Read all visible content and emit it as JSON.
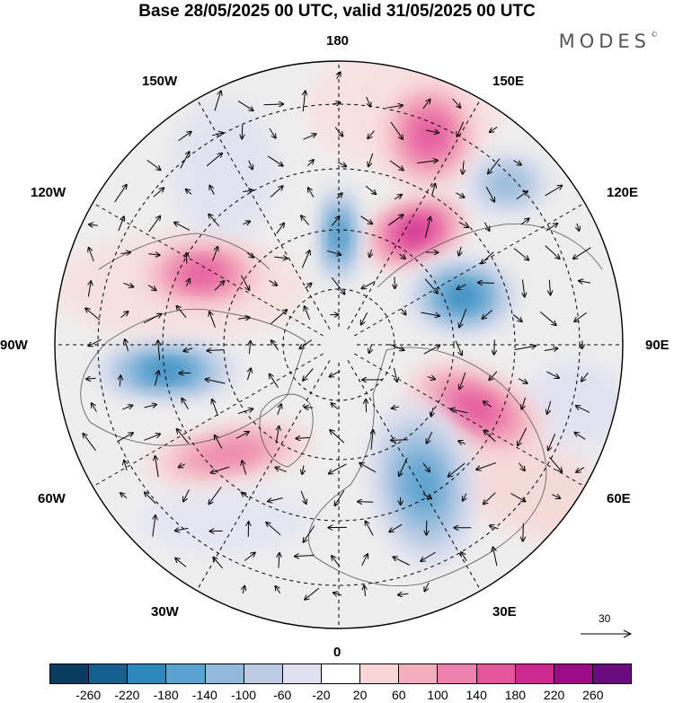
{
  "title": "Base 28/05/2025 00 UTC, valid 31/05/2025 00 UTC",
  "brand": "MODES",
  "brand_mark": "©",
  "longitude_labels": {
    "lon_180": "180",
    "lon_150E": "150E",
    "lon_120E": "120E",
    "lon_90E": "90E",
    "lon_60E": "60E",
    "lon_30E": "30E",
    "lon_0": "0",
    "lon_30W": "30W",
    "lon_60W": "60W",
    "lon_90W": "90W",
    "lon_120W": "120W",
    "lon_150W": "150W"
  },
  "reference_vector": "30",
  "colorbar": {
    "colors": [
      "#0b3d63",
      "#15608f",
      "#2f86bb",
      "#5aa2cf",
      "#91b9db",
      "#bccce4",
      "#e0e0f0",
      "#ffffff",
      "#f8d6d8",
      "#f2aebc",
      "#ee82ad",
      "#e4569c",
      "#cc2890",
      "#9b0b85",
      "#6a0b80"
    ],
    "tick_labels": [
      "-260",
      "-220",
      "-180",
      "-140",
      "-100",
      "-60",
      "-20",
      "20",
      "60",
      "100",
      "140",
      "180",
      "220",
      "260"
    ]
  },
  "anomaly_centers": [
    {
      "name": "anom-ne-siberia-positive",
      "sign": "positive",
      "level": 180
    },
    {
      "name": "anom-bering-positive",
      "sign": "positive",
      "level": 140
    },
    {
      "name": "anom-okhotsk-negative",
      "sign": "negative",
      "level": -100
    },
    {
      "name": "anom-arctic-negative",
      "sign": "negative",
      "level": -180
    },
    {
      "name": "anom-central-siberia-negative",
      "sign": "negative",
      "level": -180
    },
    {
      "name": "anom-canada-negative",
      "sign": "negative",
      "level": -180
    },
    {
      "name": "anom-alaska-positive",
      "sign": "positive",
      "level": 140
    },
    {
      "name": "anom-russia-positive",
      "sign": "positive",
      "level": 140
    },
    {
      "name": "anom-europe-negative",
      "sign": "negative",
      "level": -140
    },
    {
      "name": "anom-atlantic-positive",
      "sign": "positive",
      "level": 100
    }
  ]
}
